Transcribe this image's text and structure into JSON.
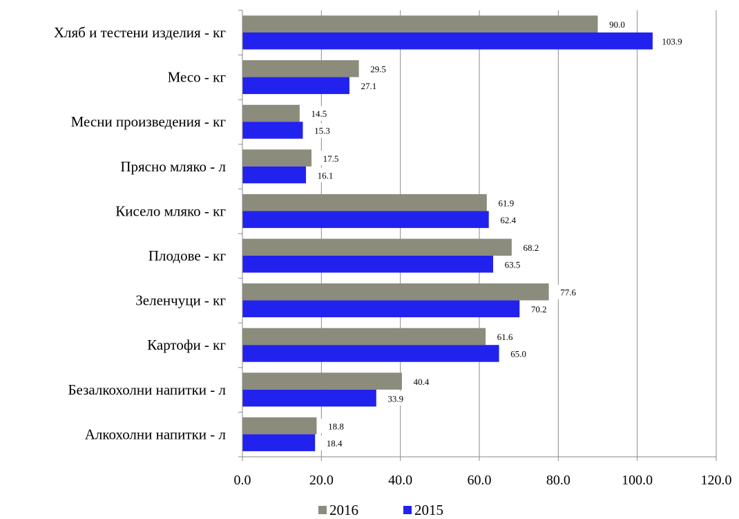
{
  "chart_data": {
    "type": "bar",
    "orientation": "horizontal",
    "title": "",
    "xlabel": "",
    "ylabel": "",
    "categories": [
      "Хляб и тестени изделия - кг",
      "Месо - кг",
      "Месни произведения - кг",
      "Прясно мляко - л",
      "Кисело мляко - кг",
      "Плодове - кг",
      "Зеленчуци - кг",
      "Картофи - кг",
      "Безалкохолни напитки - л",
      "Алкохолни напитки - л"
    ],
    "series": [
      {
        "name": "2016",
        "color": "#8c8c7c",
        "values": [
          90.0,
          29.5,
          14.5,
          17.5,
          61.9,
          68.2,
          77.6,
          61.6,
          40.4,
          18.8
        ]
      },
      {
        "name": "2015",
        "color": "#2222ee",
        "values": [
          103.9,
          27.1,
          15.3,
          16.1,
          62.4,
          63.5,
          70.2,
          65.0,
          33.9,
          18.4
        ]
      }
    ],
    "data_labels": [
      [
        "90.0",
        "29.5",
        "14.5",
        "17.5",
        "61.9",
        "68.2",
        "77.6",
        "61.6",
        "40.4",
        "18.8"
      ],
      [
        "103.9",
        "27.1",
        "15.3",
        "16.1",
        "62.4",
        "63.5",
        "70.2",
        "65.0",
        "33.9",
        "18.4"
      ]
    ],
    "xlim": [
      0,
      120
    ],
    "x_ticks": [
      0,
      20,
      40,
      60,
      80,
      100,
      120
    ],
    "x_tick_labels": [
      "0.0",
      "20.0",
      "40.0",
      "60.0",
      "80.0",
      "100.0",
      "120.0"
    ],
    "grid": "vertical",
    "legend_position": "bottom-center"
  }
}
